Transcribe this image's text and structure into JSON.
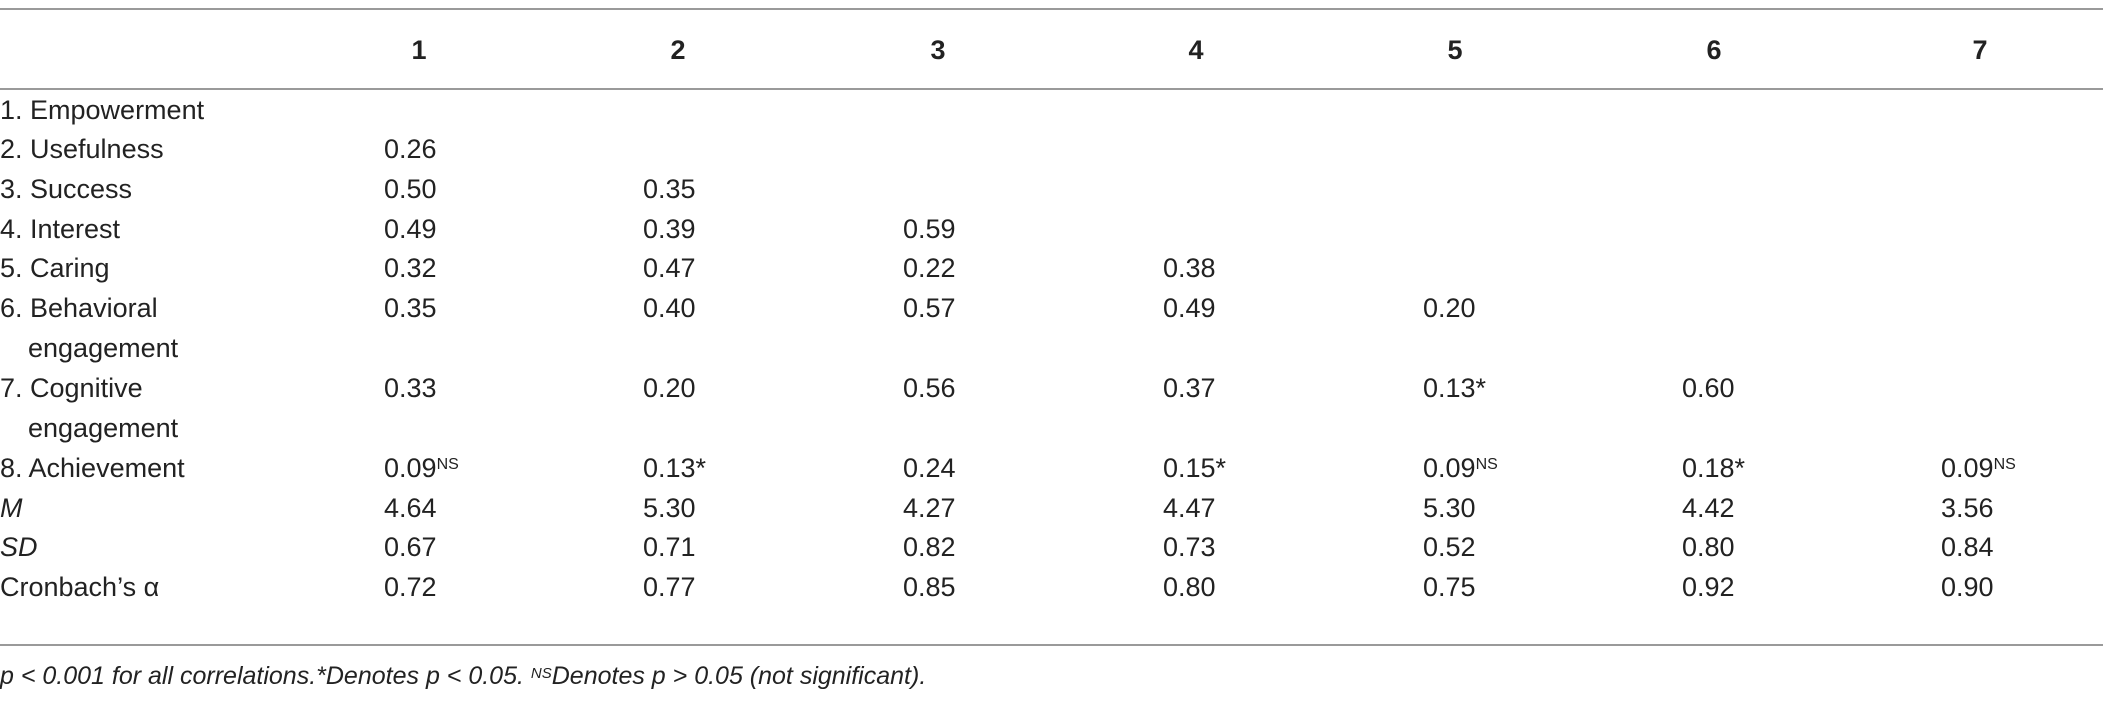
{
  "table": {
    "columns": [
      "1",
      "2",
      "3",
      "4",
      "5",
      "6",
      "7"
    ],
    "rows": [
      {
        "label": [
          "1. Empowerment"
        ],
        "italic": false,
        "cells": []
      },
      {
        "label": [
          "2. Usefulness"
        ],
        "italic": false,
        "cells": [
          {
            "v": "0.26"
          }
        ]
      },
      {
        "label": [
          "3. Success"
        ],
        "italic": false,
        "cells": [
          {
            "v": "0.50"
          },
          {
            "v": "0.35"
          }
        ]
      },
      {
        "label": [
          "4. Interest"
        ],
        "italic": false,
        "cells": [
          {
            "v": "0.49"
          },
          {
            "v": "0.39"
          },
          {
            "v": "0.59"
          }
        ]
      },
      {
        "label": [
          "5. Caring"
        ],
        "italic": false,
        "cells": [
          {
            "v": "0.32"
          },
          {
            "v": "0.47"
          },
          {
            "v": "0.22"
          },
          {
            "v": "0.38"
          }
        ]
      },
      {
        "label": [
          "6. Behavioral",
          "engagement"
        ],
        "italic": false,
        "cells": [
          {
            "v": "0.35"
          },
          {
            "v": "0.40"
          },
          {
            "v": "0.57"
          },
          {
            "v": "0.49"
          },
          {
            "v": "0.20"
          }
        ]
      },
      {
        "label": [
          "7. Cognitive",
          "engagement"
        ],
        "italic": false,
        "cells": [
          {
            "v": "0.33"
          },
          {
            "v": "0.20"
          },
          {
            "v": "0.56"
          },
          {
            "v": "0.37"
          },
          {
            "v": "0.13*"
          },
          {
            "v": "0.60"
          }
        ]
      },
      {
        "label": [
          "8. Achievement"
        ],
        "italic": false,
        "cells": [
          {
            "v": "0.09",
            "sup": "NS"
          },
          {
            "v": "0.13*"
          },
          {
            "v": "0.24"
          },
          {
            "v": "0.15*"
          },
          {
            "v": "0.09",
            "sup": "NS"
          },
          {
            "v": "0.18*"
          },
          {
            "v": "0.09",
            "sup": "NS"
          }
        ]
      },
      {
        "label": [
          "M"
        ],
        "italic": true,
        "cells": [
          {
            "v": "4.64"
          },
          {
            "v": "5.30"
          },
          {
            "v": "4.27"
          },
          {
            "v": "4.47"
          },
          {
            "v": "5.30"
          },
          {
            "v": "4.42"
          },
          {
            "v": "3.56"
          }
        ]
      },
      {
        "label": [
          "SD"
        ],
        "italic": true,
        "cells": [
          {
            "v": "0.67"
          },
          {
            "v": "0.71"
          },
          {
            "v": "0.82"
          },
          {
            "v": "0.73"
          },
          {
            "v": "0.52"
          },
          {
            "v": "0.80"
          },
          {
            "v": "0.84"
          }
        ]
      },
      {
        "label": [
          "Cronbach’s α"
        ],
        "italic": false,
        "cells": [
          {
            "v": "0.72"
          },
          {
            "v": "0.77"
          },
          {
            "v": "0.85"
          },
          {
            "v": "0.80"
          },
          {
            "v": "0.75"
          },
          {
            "v": "0.92"
          },
          {
            "v": "0.90"
          }
        ]
      }
    ]
  },
  "footnote": {
    "part1": "p < 0.001 for all correlations.*Denotes p < 0.05. ",
    "sup": "NS",
    "part2": "Denotes p > 0.05 (not significant)."
  }
}
